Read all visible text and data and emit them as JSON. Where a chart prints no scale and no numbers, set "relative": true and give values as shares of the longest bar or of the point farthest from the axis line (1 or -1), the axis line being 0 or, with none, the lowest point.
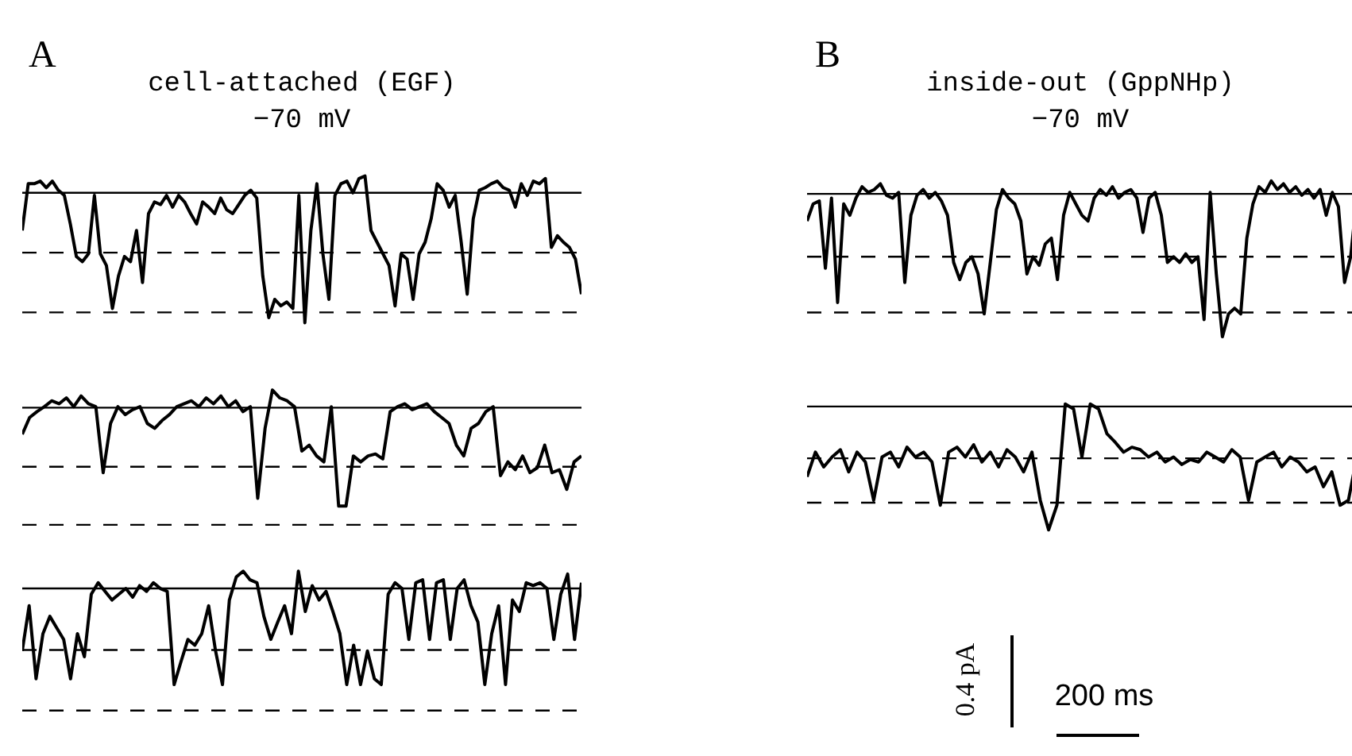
{
  "chart_data": [
    {
      "type": "line",
      "title": "A",
      "subtitle": "cell-attached (EGF)",
      "annotations": [
        "−70 mV"
      ],
      "relative": true,
      "marker": "none",
      "line_style": "solid",
      "categories": [
        null,
        null,
        null,
        null,
        null,
        null,
        null,
        null,
        null,
        null,
        null,
        null,
        null,
        null,
        null,
        null,
        null,
        null,
        null,
        null,
        null,
        null,
        null,
        null,
        null,
        null,
        null,
        null,
        null,
        null,
        null,
        null,
        null,
        null,
        null,
        null,
        null,
        null,
        null,
        null,
        null,
        null,
        null,
        null,
        null,
        null,
        null,
        null,
        null,
        null,
        null,
        null,
        null,
        null,
        null,
        null,
        null,
        null,
        null,
        null,
        null,
        null,
        null,
        null,
        null,
        null,
        null,
        null,
        null,
        null,
        null,
        null,
        null,
        null,
        null,
        null,
        null,
        null,
        null,
        null,
        null,
        null,
        null,
        null,
        null,
        null,
        null,
        null,
        null,
        null,
        null,
        null,
        null,
        null
      ],
      "series": [
        {
          "color": "#000000",
          "values": [
            -0.29,
            0.07,
            0.07,
            0.09,
            0.04,
            0.09,
            0.02,
            -0.02,
            -0.24,
            -0.49,
            -0.53,
            -0.47,
            -0.02,
            -0.47,
            -0.56,
            -0.89,
            -0.64,
            -0.49,
            -0.53,
            -0.29,
            -0.69,
            -0.16,
            -0.07,
            -0.09,
            -0.02,
            -0.11,
            -0.02,
            -0.07,
            -0.16,
            -0.24,
            -0.07,
            -0.11,
            -0.16,
            -0.04,
            -0.13,
            -0.16,
            -0.09,
            -0.02,
            0.02,
            -0.04,
            -0.64,
            -0.96,
            -0.82,
            -0.87,
            -0.84,
            -0.89,
            -0.02,
            -1,
            -0.29,
            0.07,
            -0.47,
            -0.82,
            -0.02,
            0.07,
            0.09,
            0,
            0.11,
            0.13,
            -0.29,
            -0.38,
            -0.47,
            -0.56,
            -0.87,
            -0.47,
            -0.51,
            -0.82,
            -0.47,
            -0.38,
            -0.2,
            0.07,
            0.02,
            -0.11,
            -0.02,
            -0.38,
            -0.78,
            -0.2,
            0.02,
            0.04,
            0.07,
            0.09,
            0.04,
            0.02,
            -0.11,
            0.07,
            -0.02,
            0.09,
            0.07,
            0.11,
            -0.42,
            -0.33,
            -0.38,
            -0.42,
            -0.51,
            -0.78
          ]
        }
      ],
      "ref_lines": [
        {
          "axis": "y",
          "value": 0,
          "line_style": "solid"
        },
        {
          "axis": "y",
          "value": -0.46,
          "line_style": "dashed"
        },
        {
          "axis": "y",
          "value": -0.92,
          "line_style": "dashed"
        }
      ]
    },
    {
      "type": "line",
      "relative": true,
      "marker": "none",
      "line_style": "solid",
      "categories": [
        null,
        null,
        null,
        null,
        null,
        null,
        null,
        null,
        null,
        null,
        null,
        null,
        null,
        null,
        null,
        null,
        null,
        null,
        null,
        null,
        null,
        null,
        null,
        null,
        null,
        null,
        null,
        null,
        null,
        null,
        null,
        null,
        null,
        null,
        null,
        null,
        null,
        null,
        null,
        null,
        null,
        null,
        null,
        null,
        null,
        null,
        null,
        null,
        null,
        null,
        null,
        null,
        null,
        null,
        null,
        null,
        null,
        null,
        null,
        null,
        null,
        null,
        null,
        null,
        null,
        null,
        null,
        null,
        null,
        null,
        null,
        null,
        null,
        null,
        null,
        null,
        null
      ],
      "series": [
        {
          "color": "#000000",
          "values": [
            -0.27,
            -0.1,
            -0.04,
            0.01,
            0.07,
            0.04,
            0.1,
            0.01,
            0.12,
            0.04,
            0.01,
            -0.66,
            -0.16,
            0.01,
            -0.07,
            -0.02,
            0.01,
            -0.16,
            -0.21,
            -0.13,
            -0.07,
            0.01,
            0.04,
            0.07,
            0.01,
            0.1,
            0.04,
            0.12,
            0.01,
            0.07,
            -0.04,
            0.01,
            -0.92,
            -0.21,
            0.18,
            0.1,
            0.07,
            0.01,
            -0.44,
            -0.38,
            -0.49,
            -0.55,
            0.01,
            -1,
            -1,
            -0.49,
            -0.55,
            -0.49,
            -0.47,
            -0.52,
            -0.04,
            0.01,
            0.04,
            -0.02,
            0.01,
            0.04,
            -0.04,
            -0.1,
            -0.16,
            -0.38,
            -0.49,
            -0.21,
            -0.16,
            -0.04,
            0.01,
            -0.69,
            -0.55,
            -0.63,
            -0.49,
            -0.66,
            -0.61,
            -0.38,
            -0.66,
            -0.63,
            -0.83,
            -0.55,
            -0.49
          ]
        }
      ],
      "ref_lines": [
        {
          "axis": "y",
          "value": 0,
          "line_style": "solid"
        },
        {
          "axis": "y",
          "value": -0.6,
          "line_style": "dashed"
        },
        {
          "axis": "y",
          "value": -1.19,
          "line_style": "dashed"
        }
      ]
    },
    {
      "type": "line",
      "relative": true,
      "marker": "none",
      "line_style": "solid",
      "categories": [
        null,
        null,
        null,
        null,
        null,
        null,
        null,
        null,
        null,
        null,
        null,
        null,
        null,
        null,
        null,
        null,
        null,
        null,
        null,
        null,
        null,
        null,
        null,
        null,
        null,
        null,
        null,
        null,
        null,
        null,
        null,
        null,
        null,
        null,
        null,
        null,
        null,
        null,
        null,
        null,
        null,
        null,
        null,
        null,
        null,
        null,
        null,
        null,
        null,
        null,
        null,
        null,
        null,
        null,
        null,
        null,
        null,
        null,
        null,
        null,
        null,
        null,
        null,
        null,
        null,
        null,
        null,
        null,
        null,
        null,
        null,
        null,
        null,
        null,
        null,
        null,
        null,
        null,
        null,
        null,
        null,
        null
      ],
      "series": [
        {
          "color": "#000000",
          "values": [
            -0.65,
            -0.18,
            -0.94,
            -0.47,
            -0.29,
            -0.41,
            -0.53,
            -0.94,
            -0.47,
            -0.71,
            -0.06,
            0.06,
            -0.03,
            -0.12,
            -0.06,
            0,
            -0.09,
            0.03,
            -0.03,
            0.06,
            0,
            -0.03,
            -1,
            -0.76,
            -0.53,
            -0.59,
            -0.47,
            -0.18,
            -0.65,
            -1,
            -0.12,
            0.12,
            0.18,
            0.09,
            0.06,
            -0.29,
            -0.53,
            -0.35,
            -0.18,
            -0.47,
            0.18,
            -0.24,
            0.03,
            -0.12,
            -0.03,
            -0.24,
            -0.47,
            -1,
            -0.59,
            -1,
            -0.65,
            -0.94,
            -1,
            -0.06,
            0.06,
            0,
            -0.53,
            0.06,
            0.09,
            -0.53,
            0.06,
            0.09,
            -0.53,
            0,
            0.09,
            -0.18,
            -0.35,
            -1,
            -0.47,
            -0.18,
            -1,
            -0.12,
            -0.24,
            0.06,
            0.03,
            0.06,
            0,
            -0.53,
            -0.06,
            0.15,
            -0.53,
            0.06
          ]
        }
      ],
      "ref_lines": [
        {
          "axis": "y",
          "value": 0,
          "line_style": "solid"
        },
        {
          "axis": "y",
          "value": -0.64,
          "line_style": "dashed"
        },
        {
          "axis": "y",
          "value": -1.27,
          "line_style": "dashed"
        }
      ]
    },
    {
      "type": "line",
      "title": "B",
      "subtitle": "inside-out (GppNHp)",
      "annotations": [
        "−70 mV"
      ],
      "relative": true,
      "marker": "none",
      "line_style": "solid",
      "categories": [
        null,
        null,
        null,
        null,
        null,
        null,
        null,
        null,
        null,
        null,
        null,
        null,
        null,
        null,
        null,
        null,
        null,
        null,
        null,
        null,
        null,
        null,
        null,
        null,
        null,
        null,
        null,
        null,
        null,
        null,
        null,
        null,
        null,
        null,
        null,
        null,
        null,
        null,
        null,
        null,
        null,
        null,
        null,
        null,
        null,
        null,
        null,
        null,
        null,
        null,
        null,
        null,
        null,
        null,
        null,
        null,
        null,
        null,
        null,
        null,
        null,
        null,
        null,
        null,
        null,
        null,
        null,
        null,
        null,
        null,
        null,
        null,
        null,
        null,
        null,
        null,
        null,
        null,
        null,
        null,
        null,
        null,
        null,
        null,
        null,
        null,
        null,
        null,
        null,
        null,
        null
      ],
      "series": [
        {
          "color": "#000000",
          "values": [
            -0.19,
            -0.07,
            -0.05,
            -0.52,
            -0.03,
            -0.76,
            -0.07,
            -0.15,
            -0.03,
            0.05,
            0.01,
            0.03,
            0.07,
            -0.01,
            -0.03,
            0.01,
            -0.62,
            -0.15,
            -0.01,
            0.03,
            -0.03,
            0.01,
            -0.05,
            -0.15,
            -0.48,
            -0.6,
            -0.48,
            -0.44,
            -0.56,
            -0.84,
            -0.48,
            -0.11,
            0.03,
            -0.03,
            -0.07,
            -0.19,
            -0.56,
            -0.44,
            -0.5,
            -0.35,
            -0.31,
            -0.6,
            -0.15,
            0.01,
            -0.07,
            -0.15,
            -0.19,
            -0.03,
            0.03,
            -0.01,
            0.05,
            -0.03,
            0.01,
            0.03,
            -0.03,
            -0.27,
            -0.03,
            0.01,
            -0.15,
            -0.48,
            -0.44,
            -0.48,
            -0.42,
            -0.48,
            -0.44,
            -0.88,
            0.01,
            -0.56,
            -1,
            -0.84,
            -0.8,
            -0.84,
            -0.31,
            -0.07,
            0.05,
            0.01,
            0.09,
            0.03,
            0.07,
            0.01,
            0.05,
            -0.01,
            0.03,
            -0.03,
            0.03,
            -0.15,
            0.01,
            -0.09,
            -0.62,
            -0.44,
            -0.03
          ]
        }
      ],
      "ref_lines": [
        {
          "axis": "y",
          "value": 0,
          "line_style": "solid"
        },
        {
          "axis": "y",
          "value": -0.44,
          "line_style": "dashed"
        },
        {
          "axis": "y",
          "value": -0.83,
          "line_style": "dashed"
        }
      ]
    },
    {
      "type": "line",
      "annotations": [
        "0.4 pA",
        "200 ms"
      ],
      "relative": true,
      "marker": "none",
      "line_style": "solid",
      "categories": [
        null,
        null,
        null,
        null,
        null,
        null,
        null,
        null,
        null,
        null,
        null,
        null,
        null,
        null,
        null,
        null,
        null,
        null,
        null,
        null,
        null,
        null,
        null,
        null,
        null,
        null,
        null,
        null,
        null,
        null,
        null,
        null,
        null,
        null,
        null,
        null,
        null,
        null,
        null,
        null,
        null,
        null,
        null,
        null,
        null,
        null,
        null,
        null,
        null,
        null,
        null,
        null,
        null,
        null,
        null,
        null,
        null,
        null,
        null,
        null,
        null,
        null,
        null,
        null,
        null,
        null,
        null
      ],
      "series": [
        {
          "color": "#000000",
          "values": [
            -0.57,
            -0.37,
            -0.49,
            -0.41,
            -0.35,
            -0.53,
            -0.37,
            -0.45,
            -0.76,
            -0.41,
            -0.37,
            -0.49,
            -0.33,
            -0.41,
            -0.37,
            -0.45,
            -0.8,
            -0.37,
            -0.33,
            -0.41,
            -0.31,
            -0.45,
            -0.37,
            -0.49,
            -0.35,
            -0.41,
            -0.53,
            -0.37,
            -0.76,
            -1,
            -0.8,
            0.02,
            -0.02,
            -0.41,
            0.02,
            -0.02,
            -0.22,
            -0.29,
            -0.37,
            -0.33,
            -0.35,
            -0.41,
            -0.37,
            -0.45,
            -0.41,
            -0.47,
            -0.43,
            -0.45,
            -0.37,
            -0.41,
            -0.45,
            -0.35,
            -0.41,
            -0.76,
            -0.45,
            -0.41,
            -0.37,
            -0.49,
            -0.41,
            -0.45,
            -0.53,
            -0.49,
            -0.65,
            -0.53,
            -0.8,
            -0.76,
            -0.41
          ]
        }
      ],
      "ref_lines": [
        {
          "axis": "y",
          "value": 0,
          "line_style": "solid"
        },
        {
          "axis": "y",
          "value": -0.42,
          "line_style": "dashed"
        },
        {
          "axis": "y",
          "value": -0.78,
          "line_style": "dashed"
        }
      ]
    }
  ]
}
